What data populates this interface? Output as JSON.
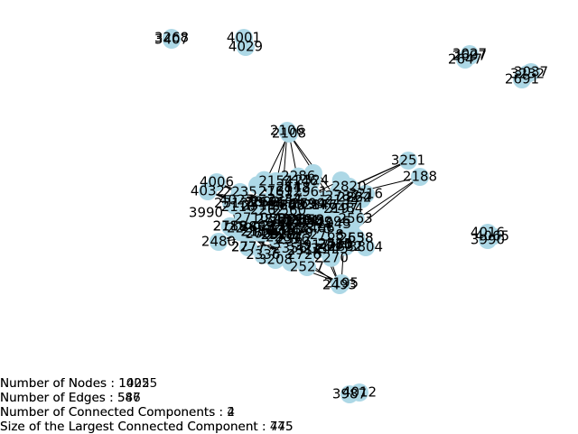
{
  "colors": {
    "node": "#add8e6",
    "edge": "#000000",
    "label": "#000000"
  },
  "stats": [
    {
      "id": "nodes",
      "text_a": "Number of Nodes : 1025",
      "text_b": "Number of Nodes : 14025"
    },
    {
      "id": "edges",
      "text_a": "Number of Edges : 587",
      "text_b": "Number of Edges : 546"
    },
    {
      "id": "components",
      "text_a": "Number of Connected Components : 4",
      "text_b": "Number of Connected Components : 2"
    },
    {
      "id": "largest",
      "text_a": "Size of the Largest Connected Component : 445",
      "text_b": "Size of the Largest Connected Component : 775"
    }
  ],
  "labels": {
    "n3268": "3268",
    "n3407": "3407",
    "n4001": "4001",
    "n4029": "4029",
    "n3027": "3027",
    "n2647": "2647",
    "n2697": "2697",
    "n3037": "3037",
    "n2691": "2691",
    "n3232": "3232",
    "n2106": "2106",
    "n2108": "2108",
    "n3251": "3251",
    "n2188": "2188",
    "n3216": "3216",
    "n4006": "4006",
    "n4032": "4032",
    "n4027": "4027",
    "n4016": "4016",
    "n4065": "4065",
    "n3990": "3990",
    "n2195": "2195",
    "n2493": "2493",
    "n3987": "3987",
    "n4012": "4012",
    "n2527": "2527",
    "n3208": "3208",
    "n2480": "2480",
    "n3804": "3804",
    "n3990b": "3990"
  }
}
